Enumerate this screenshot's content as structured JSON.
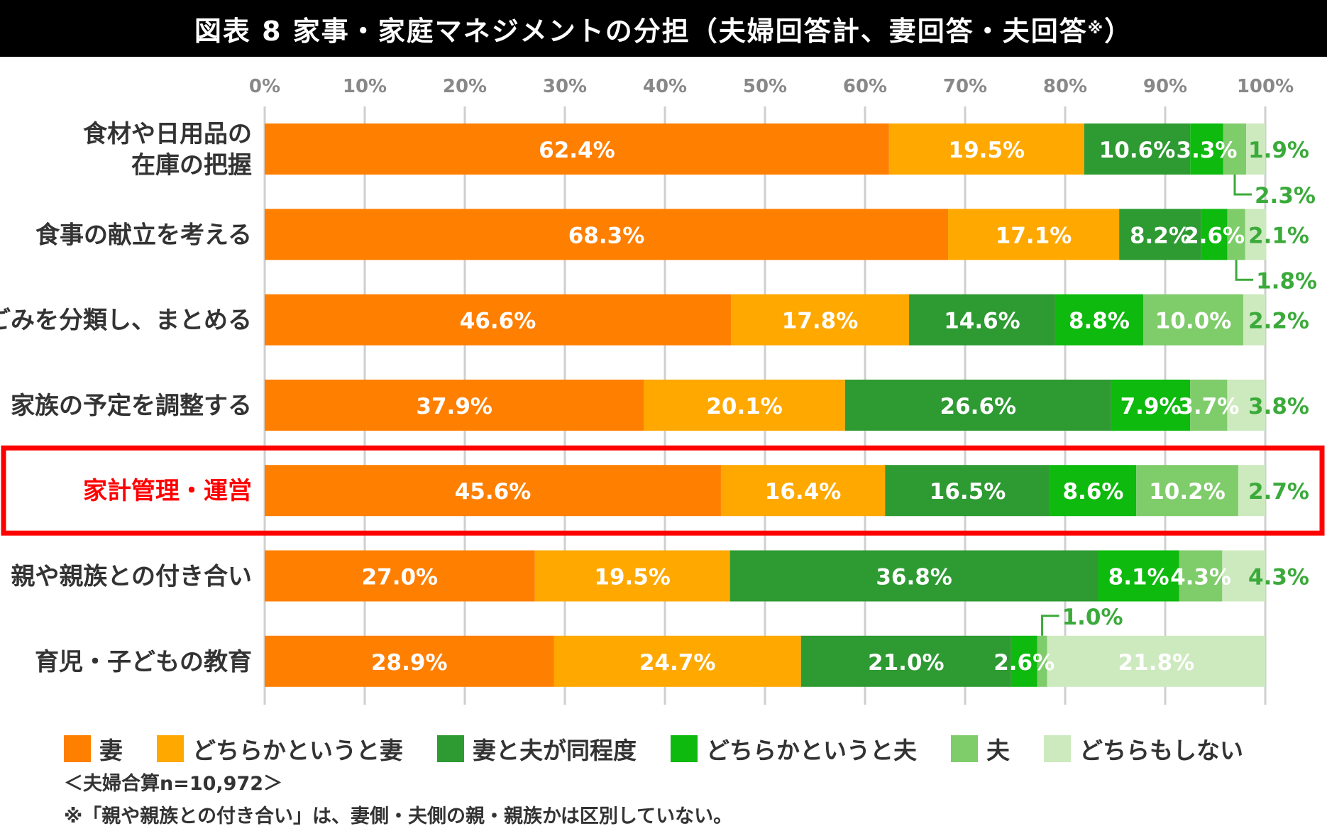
{
  "title": "図表 8 家事・家庭マネジメントの分担（夫婦回答計、妻回答・夫回答",
  "title_mark": "※",
  "title_close": "）",
  "notes": {
    "sample": "＜夫婦合算n=10,972＞",
    "footnote": "※「親や親族との付き合い」は、妻側・夫側の親・親族かは区別していない。"
  },
  "colors": {
    "wife": "#FF7F00",
    "rather_wife": "#FFA800",
    "equal": "#2E9A32",
    "rather_husband": "#0DBA0D",
    "husband": "#7FCC6B",
    "neither": "#CDEABF",
    "highlight": "#FF0000",
    "outside_label": "#3BAA3B"
  },
  "chart_data": {
    "type": "bar",
    "orientation": "horizontal",
    "stacked": true,
    "x_ticks": [
      "0%",
      "10%",
      "20%",
      "30%",
      "40%",
      "50%",
      "60%",
      "70%",
      "80%",
      "90%",
      "100%"
    ],
    "xlim": [
      0,
      100
    ],
    "legend_position": "bottom",
    "highlighted_category": "家計管理・運営",
    "categories": [
      "食材や日用品の在庫の把握",
      "食事の献立を考える",
      "ごみを分類し、まとめる",
      "家族の予定を調整する",
      "家計管理・運営",
      "親や親族との付き合い",
      "育児・子どもの教育"
    ],
    "category_lines": [
      [
        "食材や日用品の",
        "在庫の把握"
      ],
      [
        "食事の献立を考える"
      ],
      [
        "ごみを分類し、まとめる"
      ],
      [
        "家族の予定を調整する"
      ],
      [
        "家計管理・運営"
      ],
      [
        "親や親族との付き合い"
      ],
      [
        "育児・子どもの教育"
      ]
    ],
    "series": [
      {
        "name": "妻",
        "values": [
          62.4,
          68.3,
          46.6,
          37.9,
          45.6,
          27.0,
          28.9
        ],
        "labels": [
          "62.4%",
          "68.3%",
          "46.6%",
          "37.9%",
          "45.6%",
          "27.0%",
          "28.9%"
        ]
      },
      {
        "name": "どちらかというと妻",
        "values": [
          19.5,
          17.1,
          17.8,
          20.1,
          16.4,
          19.5,
          24.7
        ],
        "labels": [
          "19.5%",
          "17.1%",
          "17.8%",
          "20.1%",
          "16.4%",
          "19.5%",
          "24.7%"
        ]
      },
      {
        "name": "妻と夫が同程度",
        "values": [
          10.6,
          8.2,
          14.6,
          26.6,
          16.5,
          36.8,
          21.0
        ],
        "labels": [
          "10.6%",
          "8.2%",
          "14.6%",
          "26.6%",
          "16.5%",
          "36.8%",
          "21.0%"
        ]
      },
      {
        "name": "どちらかというと夫",
        "values": [
          3.3,
          2.6,
          8.8,
          7.9,
          8.6,
          8.1,
          2.6
        ],
        "labels": [
          "3.3%",
          "2.6%",
          "8.8%",
          "7.9%",
          "8.6%",
          "8.1%",
          "2.6%"
        ]
      },
      {
        "name": "夫",
        "values": [
          2.3,
          1.8,
          10.0,
          3.7,
          10.2,
          4.3,
          1.0
        ],
        "labels": [
          "2.3%",
          "1.8%",
          "10.0%",
          "3.7%",
          "10.2%",
          "4.3%",
          "1.0%"
        ]
      },
      {
        "name": "どちらもしない",
        "values": [
          1.9,
          2.1,
          2.2,
          3.8,
          2.7,
          4.3,
          21.8
        ],
        "labels": [
          "1.9%",
          "2.1%",
          "2.2%",
          "3.8%",
          "2.7%",
          "4.3%",
          "21.8%"
        ]
      }
    ]
  }
}
